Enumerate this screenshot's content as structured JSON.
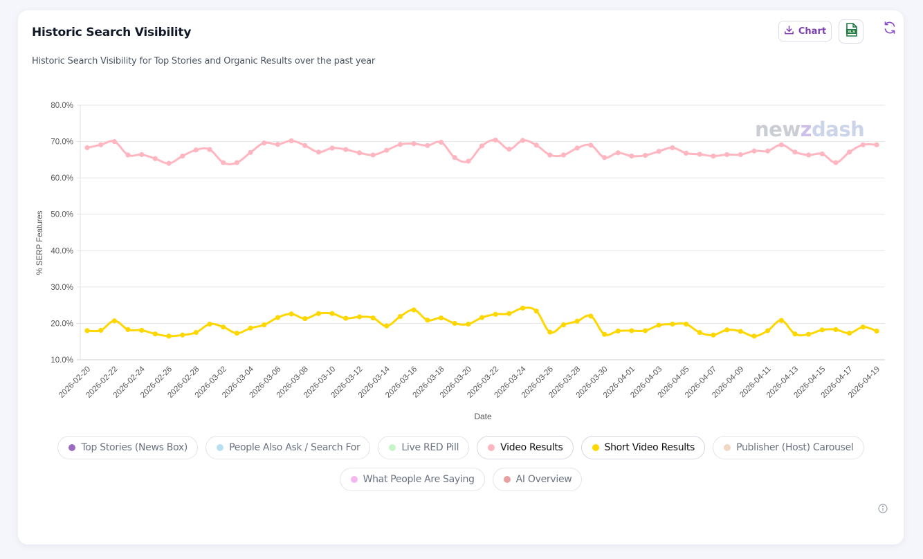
{
  "card": {
    "title": "Historic Search Visibility",
    "subtitle": "Historic Search Visibility for Top Stories and Organic Results over the past year",
    "buttons": {
      "chart_label": "Chart",
      "chart_icon": "download-icon",
      "xls_icon": "xls-file-icon",
      "refresh_icon": "refresh-icon"
    },
    "info_icon": "info-icon",
    "watermark": {
      "part1": "new",
      "part2": "z",
      "part3": "dash"
    }
  },
  "colors": {
    "accent": "#7e3fb2",
    "xls_green": "#1e7a3f"
  },
  "legend": [
    {
      "label": "Top Stories (News Box)",
      "color": "#9b6bc2",
      "active": false
    },
    {
      "label": "People Also Ask / Search For",
      "color": "#b7e0f3",
      "active": false
    },
    {
      "label": "Live RED Pill",
      "color": "#c6f5c9",
      "active": false
    },
    {
      "label": "Video Results",
      "color": "#ffb6c1",
      "active": true
    },
    {
      "label": "Short Video Results",
      "color": "#ffd700",
      "active": true
    },
    {
      "label": "Publisher (Host) Carousel",
      "color": "#f0d9c4",
      "active": false
    },
    {
      "label": "What People Are Saying",
      "color": "#f5b7f0",
      "active": false
    },
    {
      "label": "AI Overview",
      "color": "#e8a0a0",
      "active": false
    }
  ],
  "chart_data": {
    "type": "line",
    "title": "",
    "xlabel": "Date",
    "ylabel": "% SERP Features",
    "ylim": [
      10,
      80
    ],
    "yticks": [
      10,
      20,
      30,
      40,
      50,
      60,
      70,
      80
    ],
    "ytick_labels": [
      "10.0%",
      "20.0%",
      "30.0%",
      "40.0%",
      "50.0%",
      "60.0%",
      "70.0%",
      "80.0%"
    ],
    "grid": true,
    "legend_position": "bottom",
    "x_start": "2026-02-20",
    "x_count": 59,
    "xtick_labels": [
      "2026-02-20",
      "2026-02-22",
      "2026-02-24",
      "2026-02-26",
      "2026-02-28",
      "2026-03-02",
      "2026-03-04",
      "2026-03-06",
      "2026-03-08",
      "2026-03-10",
      "2026-03-12",
      "2026-03-14",
      "2026-03-16",
      "2026-03-18",
      "2026-03-20",
      "2026-03-22",
      "2026-03-24",
      "2026-03-26",
      "2026-03-28",
      "2026-03-30",
      "2026-04-01",
      "2026-04-03",
      "2026-04-05",
      "2026-04-07",
      "2026-04-09",
      "2026-04-11",
      "2026-04-13",
      "2026-04-15",
      "2026-04-17",
      "2026-04-19"
    ],
    "series": [
      {
        "name": "Video Results",
        "color": "#ffb6c1",
        "values": [
          68.3,
          69.1,
          70.0,
          66.3,
          66.4,
          65.3,
          64.0,
          66.0,
          67.7,
          67.8,
          64.2,
          64.2,
          67.0,
          69.6,
          69.2,
          70.2,
          68.9,
          67.1,
          68.2,
          67.8,
          66.9,
          66.3,
          67.6,
          69.2,
          69.4,
          68.9,
          69.8,
          65.6,
          64.6,
          68.8,
          70.4,
          67.9,
          70.3,
          69.0,
          66.3,
          66.3,
          68.2,
          69.0,
          65.6,
          66.9,
          66.0,
          66.2,
          67.3,
          68.3,
          66.8,
          66.5,
          66.0,
          66.4,
          66.4,
          67.4,
          67.4,
          69.1,
          67.1,
          66.3,
          66.6,
          64.2,
          67.1,
          69.1,
          69.1
        ]
      },
      {
        "name": "Short Video Results",
        "color": "#ffd700",
        "values": [
          18.0,
          18.1,
          20.7,
          18.3,
          18.1,
          17.1,
          16.5,
          16.8,
          17.5,
          19.8,
          19.0,
          17.3,
          18.7,
          19.6,
          21.6,
          22.6,
          21.3,
          22.7,
          22.7,
          21.4,
          21.8,
          21.5,
          19.3,
          21.9,
          23.7,
          20.9,
          21.5,
          20.0,
          19.8,
          21.6,
          22.5,
          22.7,
          24.2,
          23.4,
          17.6,
          19.6,
          20.6,
          22.0,
          17.0,
          17.9,
          18.0,
          18.0,
          19.5,
          19.8,
          19.8,
          17.5,
          16.8,
          18.2,
          17.8,
          16.5,
          18.0,
          20.8,
          17.1,
          17.0,
          18.2,
          18.3,
          17.3,
          19.0,
          17.9
        ]
      }
    ]
  }
}
